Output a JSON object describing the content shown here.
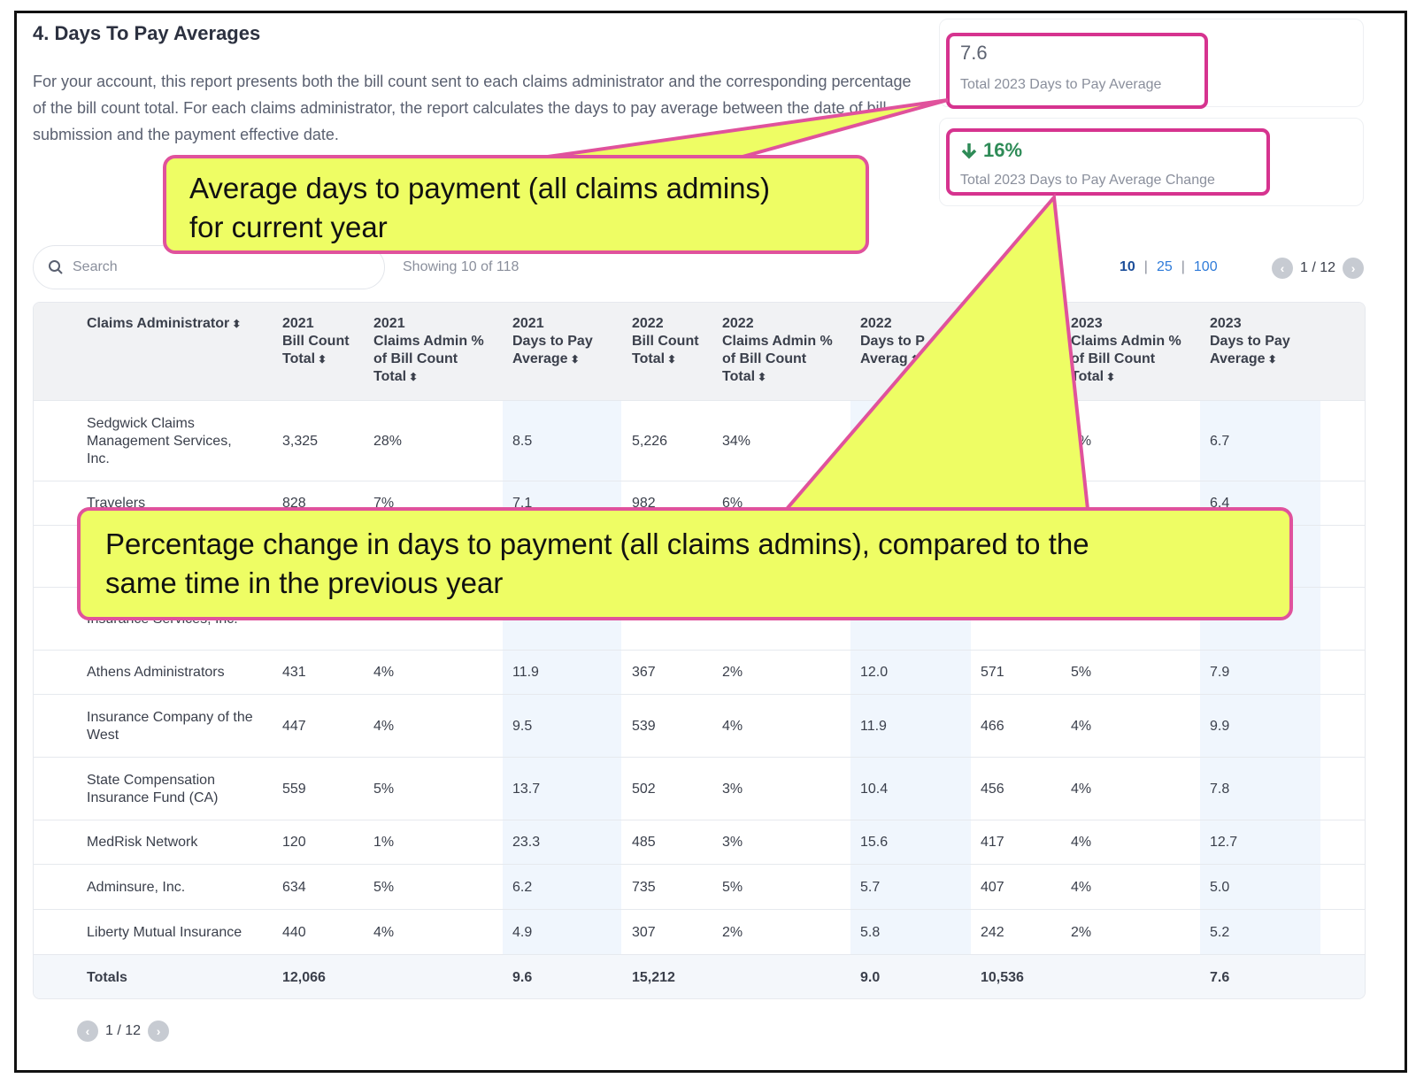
{
  "page": {
    "title": "4. Days To Pay Averages",
    "description": "For your account, this report presents both the bill count sent to each claims administrator and the corresponding percentage of the bill count total. For each claims administrator, the report calculates the days to pay average between the date of bill submission and the payment effective date."
  },
  "kpis": {
    "total_avg": {
      "value": "7.6",
      "label": "Total 2023 Days to Pay Average"
    },
    "total_change": {
      "value": "16%",
      "label": "Total 2023 Days to Pay Average Change",
      "direction": "down",
      "color": "#2e8b57"
    }
  },
  "controls": {
    "search_placeholder": "Search",
    "showing": "Showing 10 of 118",
    "page_sizes": [
      "10",
      "25",
      "100"
    ],
    "active_page_size": "10",
    "pagination": "1 / 12"
  },
  "table": {
    "headers": [
      [
        "Claims Administrator"
      ],
      [
        "2021",
        "Bill Count",
        "Total"
      ],
      [
        "2021",
        "Claims Admin %",
        "of Bill Count",
        "Total"
      ],
      [
        "2021",
        "Days to Pay",
        "Average"
      ],
      [
        "2022",
        "Bill Count",
        "Total"
      ],
      [
        "2022",
        "Claims Admin %",
        "of Bill Count",
        "Total"
      ],
      [
        "2022",
        "Days to P",
        "Averag"
      ],
      [
        "2023",
        "Bill Count",
        "Total"
      ],
      [
        "2023",
        "Claims Admin %",
        "of Bill Count",
        "Total"
      ],
      [
        "2023",
        "Days to Pay",
        "Average"
      ]
    ],
    "rows": [
      {
        "name": [
          "Sedgwick Claims",
          "Management Services,",
          "Inc."
        ],
        "values": [
          "3,325",
          "28%",
          "8.5",
          "5,226",
          "34%",
          "",
          "",
          "4%",
          "6.7"
        ]
      },
      {
        "name": [
          "Travelers"
        ],
        "values": [
          "828",
          "7%",
          "7.1",
          "982",
          "6%",
          "",
          "",
          "",
          "6.4"
        ]
      },
      {
        "name": [
          ""
        ],
        "values": [
          "",
          "",
          "",
          "",
          "",
          "",
          "",
          "",
          ""
        ]
      },
      {
        "name": [
          "Insurance Services, Inc."
        ],
        "values": [
          "",
          "",
          "",
          "",
          "",
          "",
          "",
          "",
          ""
        ]
      },
      {
        "name": [
          "Athens Administrators"
        ],
        "values": [
          "431",
          "4%",
          "11.9",
          "367",
          "2%",
          "12.0",
          "571",
          "5%",
          "7.9"
        ]
      },
      {
        "name": [
          "Insurance Company of the",
          "West"
        ],
        "values": [
          "447",
          "4%",
          "9.5",
          "539",
          "4%",
          "11.9",
          "466",
          "4%",
          "9.9"
        ]
      },
      {
        "name": [
          "State Compensation",
          "Insurance Fund (CA)"
        ],
        "values": [
          "559",
          "5%",
          "13.7",
          "502",
          "3%",
          "10.4",
          "456",
          "4%",
          "7.8"
        ]
      },
      {
        "name": [
          "MedRisk Network"
        ],
        "values": [
          "120",
          "1%",
          "23.3",
          "485",
          "3%",
          "15.6",
          "417",
          "4%",
          "12.7"
        ]
      },
      {
        "name": [
          "Adminsure, Inc."
        ],
        "values": [
          "634",
          "5%",
          "6.2",
          "735",
          "5%",
          "5.7",
          "407",
          "4%",
          "5.0"
        ]
      },
      {
        "name": [
          "Liberty Mutual Insurance"
        ],
        "values": [
          "440",
          "4%",
          "4.9",
          "307",
          "2%",
          "5.8",
          "242",
          "2%",
          "5.2"
        ]
      }
    ],
    "totals": {
      "name": "Totals",
      "values": [
        "12,066",
        "",
        "9.6",
        "15,212",
        "",
        "9.0",
        "10,536",
        "",
        "7.6"
      ]
    }
  },
  "callouts": {
    "avg_note": [
      "Average days to payment (all claims admins)",
      "for current year"
    ],
    "change_note": [
      "Percentage change in days to payment (all claims admins), compared to the",
      "same time in the previous year"
    ]
  }
}
